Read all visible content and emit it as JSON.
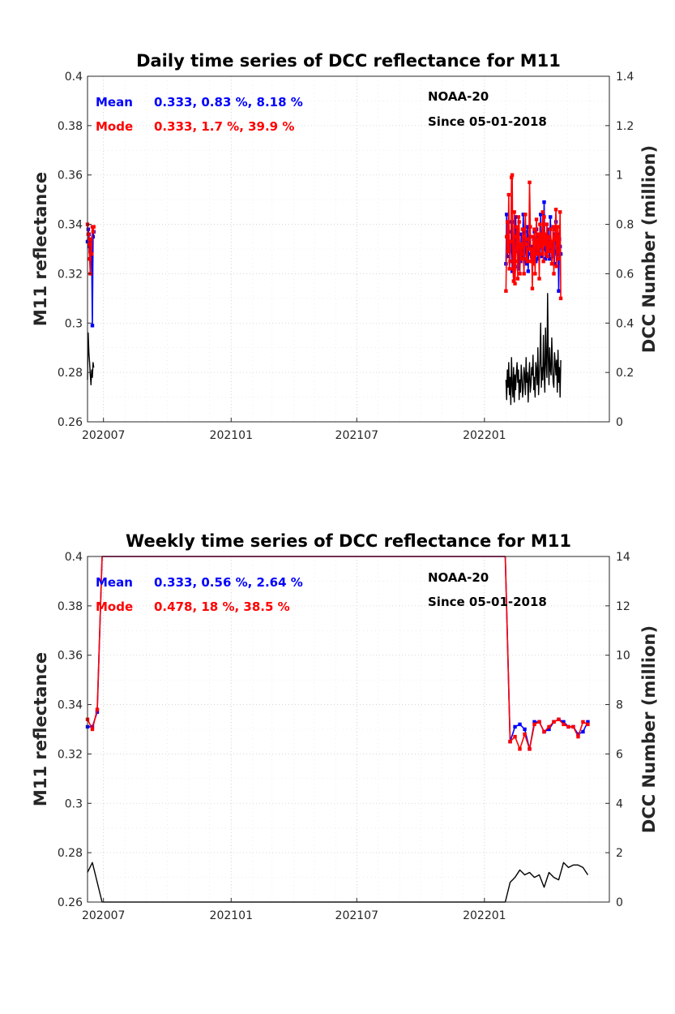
{
  "chart_data": [
    {
      "type": "line",
      "title": "Daily time series of DCC reflectance for M11",
      "ylabel": "M11 reflectance",
      "y2label": "DCC Number (million)",
      "ylim": [
        0.26,
        0.4
      ],
      "y2lim": [
        0,
        1.4
      ],
      "xlim": [
        "2020-06-08",
        "2022-06-30"
      ],
      "x_ticks": [
        {
          "date": "2020-07-01",
          "label": "202007"
        },
        {
          "date": "2021-01-01",
          "label": "202101"
        },
        {
          "date": "2021-07-01",
          "label": "202107"
        },
        {
          "date": "2022-01-01",
          "label": "202201"
        }
      ],
      "y_ticks": [
        "0.26",
        "0.28",
        "0.3",
        "0.32",
        "0.34",
        "0.36",
        "0.38",
        "0.4"
      ],
      "y2_ticks": [
        "0",
        "0.2",
        "0.4",
        "0.6",
        "0.8",
        "1",
        "1.2",
        "1.4"
      ],
      "grid": true,
      "annotations": {
        "mean_label": "Mean",
        "mean_values": "0.333, 0.83 %, 8.18 %",
        "mode_label": "Mode",
        "mode_values": "0.333, 1.7 %, 39.9 %",
        "satellite": "NOAA-20",
        "since": "Since 05-01-2018"
      },
      "colors": {
        "mean": "#0000ff",
        "mode": "#ff0000",
        "count": "#000000"
      },
      "segments": [
        {
          "start": "2020-06-08",
          "step_days": 1,
          "mean": [
            0.333,
            0.338,
            0.336,
            0.331,
            0.329,
            0.333,
            0.327,
            0.299,
            0.335,
            0.337
          ],
          "mode": [
            0.34,
            0.336,
            0.332,
            0.326,
            0.32,
            0.334,
            0.328,
            0.339,
            0.337,
            0.339
          ],
          "count": [
            0.17,
            0.36,
            0.28,
            0.24,
            0.19,
            0.15,
            0.21,
            0.18,
            0.24,
            0.22
          ]
        },
        {
          "start": "2022-02-01",
          "step_days": 1,
          "mean": [
            0.324,
            0.344,
            0.327,
            0.333,
            0.337,
            0.33,
            0.333,
            0.329,
            0.341,
            0.321,
            0.33,
            0.326,
            0.341,
            0.323,
            0.343,
            0.332,
            0.329,
            0.33,
            0.322,
            0.336,
            0.328,
            0.325,
            0.336,
            0.327,
            0.333,
            0.344,
            0.331,
            0.325,
            0.337,
            0.33,
            0.324,
            0.339,
            0.321,
            0.332,
            0.335,
            0.33,
            0.328,
            0.327,
            0.331,
            0.326,
            0.334,
            0.337,
            0.332,
            0.325,
            0.338,
            0.329,
            0.326,
            0.335,
            0.333,
            0.328,
            0.344,
            0.331,
            0.327,
            0.336,
            0.33,
            0.349,
            0.334,
            0.326,
            0.336,
            0.331,
            0.329,
            0.338,
            0.33,
            0.326,
            0.343,
            0.331,
            0.333,
            0.327,
            0.339,
            0.33,
            0.324,
            0.336,
            0.341,
            0.329,
            0.328,
            0.336,
            0.313,
            0.334,
            0.331,
            0.328
          ],
          "mode": [
            0.313,
            0.335,
            0.341,
            0.329,
            0.352,
            0.322,
            0.325,
            0.333,
            0.359,
            0.36,
            0.322,
            0.317,
            0.345,
            0.316,
            0.325,
            0.335,
            0.339,
            0.318,
            0.343,
            0.341,
            0.32,
            0.331,
            0.326,
            0.332,
            0.338,
            0.328,
            0.32,
            0.335,
            0.344,
            0.332,
            0.326,
            0.325,
            0.334,
            0.33,
            0.357,
            0.339,
            0.325,
            0.33,
            0.314,
            0.335,
            0.324,
            0.338,
            0.32,
            0.333,
            0.342,
            0.328,
            0.331,
            0.336,
            0.318,
            0.34,
            0.331,
            0.336,
            0.328,
            0.345,
            0.325,
            0.343,
            0.332,
            0.336,
            0.328,
            0.34,
            0.327,
            0.335,
            0.329,
            0.331,
            0.338,
            0.333,
            0.324,
            0.329,
            0.339,
            0.32,
            0.334,
            0.338,
            0.346,
            0.323,
            0.335,
            0.339,
            0.326,
            0.329,
            0.345,
            0.31
          ],
          "count": [
            0.17,
            0.09,
            0.21,
            0.14,
            0.24,
            0.11,
            0.18,
            0.07,
            0.26,
            0.15,
            0.1,
            0.22,
            0.08,
            0.19,
            0.13,
            0.2,
            0.24,
            0.16,
            0.21,
            0.09,
            0.17,
            0.12,
            0.23,
            0.18,
            0.1,
            0.14,
            0.22,
            0.19,
            0.11,
            0.26,
            0.16,
            0.2,
            0.08,
            0.18,
            0.24,
            0.12,
            0.15,
            0.22,
            0.19,
            0.27,
            0.13,
            0.18,
            0.1,
            0.24,
            0.21,
            0.15,
            0.3,
            0.11,
            0.19,
            0.25,
            0.4,
            0.14,
            0.22,
            0.17,
            0.35,
            0.2,
            0.12,
            0.38,
            0.24,
            0.18,
            0.52,
            0.26,
            0.15,
            0.3,
            0.21,
            0.19,
            0.34,
            0.23,
            0.16,
            0.14,
            0.28,
            0.24,
            0.19,
            0.25,
            0.12,
            0.29,
            0.16,
            0.22,
            0.1,
            0.25
          ]
        }
      ]
    },
    {
      "type": "line",
      "title": "Weekly time series of DCC reflectance for M11",
      "ylabel": "M11 reflectance",
      "y2label": "DCC Number (million)",
      "ylim": [
        0.26,
        0.4
      ],
      "y2lim": [
        0,
        14
      ],
      "xlim": [
        "2020-06-08",
        "2022-06-30"
      ],
      "x_ticks": [
        {
          "date": "2020-07-01",
          "label": "202007"
        },
        {
          "date": "2021-01-01",
          "label": "202101"
        },
        {
          "date": "2021-07-01",
          "label": "202107"
        },
        {
          "date": "2022-01-01",
          "label": "202201"
        }
      ],
      "y_ticks": [
        "0.26",
        "0.28",
        "0.3",
        "0.32",
        "0.34",
        "0.36",
        "0.38",
        "0.4"
      ],
      "y2_ticks": [
        "0",
        "2",
        "4",
        "6",
        "8",
        "10",
        "12",
        "14"
      ],
      "grid": true,
      "annotations": {
        "mean_label": "Mean",
        "mean_values": "0.333, 0.56 %, 2.64 %",
        "mode_label": "Mode",
        "mode_values": "0.478, 18 %, 38.5 %",
        "satellite": "NOAA-20",
        "since": "Since 05-01-2018"
      },
      "colors": {
        "mean": "#0000ff",
        "mode": "#ff0000",
        "count": "#000000"
      },
      "mean": [
        {
          "x": "2020-06-08",
          "y": 0.331
        },
        {
          "x": "2020-06-15",
          "y": 0.331
        },
        {
          "x": "2020-06-22",
          "y": 0.337
        },
        {
          "x": "2020-06-29",
          "y": 0.478
        },
        {
          "x": "2022-01-31",
          "y": 0.478
        },
        {
          "x": "2022-02-07",
          "y": 0.325
        },
        {
          "x": "2022-02-14",
          "y": 0.331
        },
        {
          "x": "2022-02-21",
          "y": 0.332
        },
        {
          "x": "2022-02-28",
          "y": 0.33
        },
        {
          "x": "2022-03-07",
          "y": 0.322
        },
        {
          "x": "2022-03-14",
          "y": 0.333
        },
        {
          "x": "2022-03-21",
          "y": 0.333
        },
        {
          "x": "2022-03-28",
          "y": 0.329
        },
        {
          "x": "2022-04-04",
          "y": 0.33
        },
        {
          "x": "2022-04-11",
          "y": 0.333
        },
        {
          "x": "2022-04-18",
          "y": 0.334
        },
        {
          "x": "2022-04-25",
          "y": 0.333
        },
        {
          "x": "2022-05-02",
          "y": 0.331
        },
        {
          "x": "2022-05-09",
          "y": 0.331
        },
        {
          "x": "2022-05-16",
          "y": 0.328
        },
        {
          "x": "2022-05-23",
          "y": 0.329
        },
        {
          "x": "2022-05-30",
          "y": 0.333
        }
      ],
      "mode": [
        {
          "x": "2020-06-08",
          "y": 0.334
        },
        {
          "x": "2020-06-15",
          "y": 0.33
        },
        {
          "x": "2020-06-22",
          "y": 0.338
        },
        {
          "x": "2020-06-29",
          "y": 0.478
        },
        {
          "x": "2022-01-31",
          "y": 0.478
        },
        {
          "x": "2022-02-07",
          "y": 0.325
        },
        {
          "x": "2022-02-14",
          "y": 0.327
        },
        {
          "x": "2022-02-21",
          "y": 0.322
        },
        {
          "x": "2022-02-28",
          "y": 0.328
        },
        {
          "x": "2022-03-07",
          "y": 0.322
        },
        {
          "x": "2022-03-14",
          "y": 0.332
        },
        {
          "x": "2022-03-21",
          "y": 0.333
        },
        {
          "x": "2022-03-28",
          "y": 0.329
        },
        {
          "x": "2022-04-04",
          "y": 0.331
        },
        {
          "x": "2022-04-11",
          "y": 0.333
        },
        {
          "x": "2022-04-18",
          "y": 0.334
        },
        {
          "x": "2022-04-25",
          "y": 0.332
        },
        {
          "x": "2022-05-02",
          "y": 0.331
        },
        {
          "x": "2022-05-09",
          "y": 0.331
        },
        {
          "x": "2022-05-16",
          "y": 0.327
        },
        {
          "x": "2022-05-23",
          "y": 0.333
        },
        {
          "x": "2022-05-30",
          "y": 0.332
        }
      ],
      "count": [
        {
          "x": "2020-06-08",
          "y": 1.2
        },
        {
          "x": "2020-06-15",
          "y": 1.6
        },
        {
          "x": "2020-06-29",
          "y": 0.0
        },
        {
          "x": "2022-01-31",
          "y": 0.0
        },
        {
          "x": "2022-02-07",
          "y": 0.8
        },
        {
          "x": "2022-02-14",
          "y": 1.0
        },
        {
          "x": "2022-02-21",
          "y": 1.3
        },
        {
          "x": "2022-02-28",
          "y": 1.1
        },
        {
          "x": "2022-03-07",
          "y": 1.2
        },
        {
          "x": "2022-03-14",
          "y": 1.0
        },
        {
          "x": "2022-03-21",
          "y": 1.1
        },
        {
          "x": "2022-03-28",
          "y": 0.6
        },
        {
          "x": "2022-04-04",
          "y": 1.2
        },
        {
          "x": "2022-04-11",
          "y": 1.0
        },
        {
          "x": "2022-04-18",
          "y": 0.9
        },
        {
          "x": "2022-04-25",
          "y": 1.6
        },
        {
          "x": "2022-05-02",
          "y": 1.4
        },
        {
          "x": "2022-05-09",
          "y": 1.5
        },
        {
          "x": "2022-05-16",
          "y": 1.5
        },
        {
          "x": "2022-05-23",
          "y": 1.4
        },
        {
          "x": "2022-05-30",
          "y": 1.1
        }
      ]
    }
  ]
}
